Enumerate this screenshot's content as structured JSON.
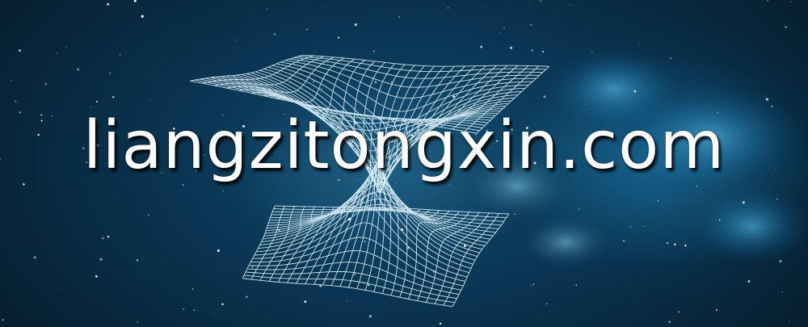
{
  "banner": {
    "headline": "liangzitongxin.com"
  },
  "colors": {
    "background_dark": "#061826",
    "background_mid": "#0f4a6a",
    "nebula_glow": "#2aa0dc",
    "mesh_line": "#dff4ff",
    "text": "#ffffff"
  },
  "decorations": {
    "mesh_icon": "spacetime-wormhole-grid",
    "background_icon": "starfield-nebula"
  }
}
